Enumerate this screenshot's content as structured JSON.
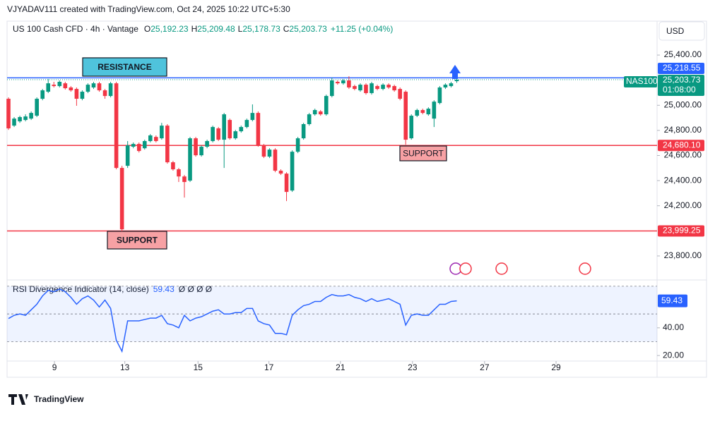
{
  "chart_data": {
    "type": "candlestick",
    "credit": "VJYADAV111 created with TradingView.com, Oct 24, 2025 10:22 UTC+5:30",
    "symbol": "US 100 Cash CFD · 4h · Vantage",
    "legend": {
      "O": "25,192.23",
      "H": "25,209.48",
      "L": "25,178.73",
      "C": "25,203.73",
      "change": "+11.25 (+0.04%)"
    },
    "currency": "USD",
    "up_color": "#089981",
    "down_color": "#f23645",
    "candles": {
      "open": [
        25052,
        24838,
        24872,
        24883,
        24894,
        24917,
        25052,
        25108,
        25164,
        25153,
        25175,
        25142,
        25130,
        25052,
        25108,
        25142,
        25175,
        25119,
        25074,
        25175,
        24501,
        24518,
        24670,
        24692,
        24658,
        24715,
        24748,
        24737,
        24838,
        24546,
        24490,
        24433,
        24400,
        24737,
        24602,
        24670,
        24715,
        24816,
        24726,
        24883,
        24737,
        24793,
        24827,
        24883,
        24939,
        24681,
        24591,
        24647,
        24479,
        24456,
        24321,
        24630,
        24737,
        24850,
        24928,
        24951,
        24928,
        25074,
        25187,
        25175,
        25198,
        25153,
        25119,
        25164,
        25097,
        25153,
        25130,
        25164,
        25153,
        25130,
        25108,
        24737,
        24917,
        24962,
        24928,
        24894,
        25018,
        25142,
        25153,
        25192.23
      ],
      "high": [
        25063,
        24906,
        24917,
        24928,
        24951,
        25063,
        25130,
        25209,
        25187,
        25198,
        25187,
        25153,
        25142,
        25119,
        25175,
        25187,
        25187,
        25130,
        25187,
        25187,
        24518,
        24715,
        24704,
        24704,
        24726,
        24771,
        24760,
        24860,
        24850,
        24557,
        24501,
        24445,
        24748,
        24748,
        24681,
        24726,
        24838,
        24827,
        24939,
        24894,
        24804,
        24838,
        24894,
        25007,
        24951,
        24692,
        24658,
        24658,
        24490,
        24467,
        24641,
        24748,
        24860,
        24939,
        24973,
        24962,
        25085,
        25220,
        25198,
        25209,
        25231,
        25164,
        25175,
        25175,
        25187,
        25164,
        25175,
        25175,
        25164,
        25142,
        25119,
        24928,
        24973,
        24973,
        24984,
        25040,
        25153,
        25175,
        25187,
        25209.48
      ],
      "low": [
        24804,
        24827,
        24860,
        24872,
        24883,
        24906,
        25040,
        25097,
        25142,
        25142,
        25125,
        25108,
        24996,
        25040,
        25097,
        25130,
        25108,
        25052,
        25063,
        24490,
        23996,
        24501,
        24658,
        24624,
        24647,
        24704,
        24704,
        24726,
        24535,
        24479,
        24389,
        24265,
        24389,
        24591,
        24591,
        24658,
        24704,
        24715,
        24501,
        24726,
        24726,
        24782,
        24816,
        24872,
        24670,
        24580,
        24580,
        24467,
        24445,
        24237,
        24310,
        24619,
        24726,
        24838,
        24917,
        24917,
        24917,
        25063,
        25164,
        25164,
        25130,
        25119,
        25108,
        25085,
        25085,
        25119,
        25119,
        25130,
        25108,
        25040,
        24686,
        24726,
        24906,
        24928,
        24917,
        24827,
        25007,
        25130,
        25142,
        25178.73
      ],
      "close": [
        24816,
        24894,
        24906,
        24911,
        24939,
        25052,
        25119,
        25175,
        25153,
        25187,
        25136,
        25119,
        25052,
        25108,
        25164,
        25175,
        25119,
        25074,
        25175,
        24501,
        24012,
        24681,
        24692,
        24636,
        24715,
        24760,
        24715,
        24838,
        24546,
        24490,
        24433,
        24389,
        24737,
        24602,
        24670,
        24715,
        24827,
        24726,
        24928,
        24737,
        24793,
        24827,
        24883,
        24939,
        24681,
        24591,
        24647,
        24479,
        24456,
        24310,
        24630,
        24737,
        24850,
        24928,
        24962,
        24928,
        25074,
        25198,
        25175,
        25198,
        25142,
        25130,
        25164,
        25097,
        25175,
        25130,
        25164,
        25142,
        25119,
        25052,
        24726,
        24917,
        24962,
        24939,
        24973,
        25029,
        25142,
        25164,
        25175,
        25203.73
      ]
    },
    "xlim": [
      -0.25,
      114.3
    ],
    "xticks": [
      {
        "value": 8.1,
        "label": "9"
      },
      {
        "value": 20.5,
        "label": "13"
      },
      {
        "value": 33.4,
        "label": "15"
      },
      {
        "value": 45.9,
        "label": "17"
      },
      {
        "value": 58.5,
        "label": "21"
      },
      {
        "value": 71.2,
        "label": "23"
      },
      {
        "value": 83.9,
        "label": "27"
      },
      {
        "value": 96.5,
        "label": "29"
      }
    ],
    "ylim": [
      23620,
      25670
    ],
    "yticks": [
      {
        "value": 25400,
        "label": "25,400.00"
      },
      {
        "value": 25000,
        "label": "25,000.00"
      },
      {
        "value": 24800,
        "label": "24,800.00"
      },
      {
        "value": 24600,
        "label": "24,600.00"
      },
      {
        "value": 24400,
        "label": "24,400.00"
      },
      {
        "value": 24200,
        "label": "24,200.00"
      },
      {
        "value": 23800,
        "label": "23,800.00"
      }
    ],
    "levels": [
      {
        "name": "RESISTANCE",
        "value": 25218.55,
        "label": "25,218.55",
        "color": "#2962ff"
      },
      {
        "name": "SUPPORT",
        "value": 24680.1,
        "label": "24,680.10",
        "color": "#f23645"
      },
      {
        "name": "SUPPORT",
        "value": 23999.25,
        "label": "23,999.25",
        "color": "#f23645"
      }
    ],
    "last_price": {
      "name": "NAS100",
      "value": 25203.73,
      "label": "25,203.73",
      "countdown": "01:08:00"
    },
    "rsi": {
      "name": "RSI Divergence Indicator (14, close)",
      "extras": "Ø Ø Ø Ø",
      "color": "#2962ff",
      "values": [
        46.7,
        49,
        50,
        49,
        53,
        57,
        63,
        67,
        66,
        68,
        66,
        62,
        57,
        61,
        63,
        60,
        55,
        60,
        54,
        31,
        23,
        45,
        45,
        45,
        46,
        47,
        47,
        49,
        43,
        42,
        40,
        49,
        45,
        47,
        48,
        50,
        52,
        53,
        50,
        50,
        51,
        51,
        54,
        54,
        45,
        43,
        42,
        36,
        36,
        35,
        49,
        53,
        56,
        57,
        59,
        59,
        62,
        64,
        63,
        63,
        64,
        62,
        61,
        59,
        61,
        59,
        60,
        61,
        59,
        57,
        42,
        49,
        50,
        49,
        49,
        53,
        57,
        57,
        59,
        59.43
      ],
      "ylim": [
        16,
        73
      ],
      "yticks": [
        {
          "value": 40,
          "label": "40.00"
        },
        {
          "value": 20,
          "label": "20.00"
        }
      ],
      "levels": [
        70,
        50,
        30
      ]
    },
    "brand": "TradingView"
  }
}
